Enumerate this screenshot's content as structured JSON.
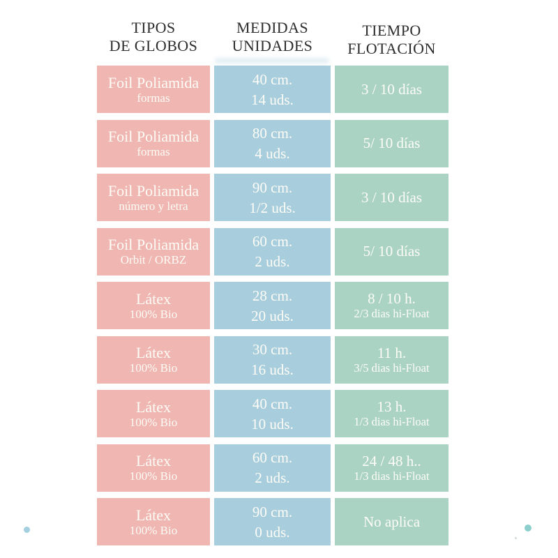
{
  "columns": [
    {
      "line1": "TIPOS",
      "line2": "DE GLOBOS"
    },
    {
      "line1": "MEDIDAS",
      "line2": "UNIDADES"
    },
    {
      "line1": "TIEMPO",
      "line2": "FLOTACIÓN"
    }
  ],
  "rows": [
    {
      "tipo": "Foil Poliamida",
      "tipo_sub": "formas",
      "medida": "40 cm.",
      "unidades": "14 uds.",
      "tiempo": "3 / 10 días",
      "tiempo_sub": ""
    },
    {
      "tipo": "Foil Poliamida",
      "tipo_sub": "formas",
      "medida": "80 cm.",
      "unidades": "4 uds.",
      "tiempo": "5/ 10 días",
      "tiempo_sub": ""
    },
    {
      "tipo": "Foil Poliamida",
      "tipo_sub": "número y letra",
      "medida": "90 cm.",
      "unidades": "1/2 uds.",
      "tiempo": "3 / 10 días",
      "tiempo_sub": ""
    },
    {
      "tipo": "Foil Poliamida",
      "tipo_sub": "Orbit / ORBZ",
      "medida": "60 cm.",
      "unidades": "2 uds.",
      "tiempo": "5/ 10 días",
      "tiempo_sub": ""
    },
    {
      "tipo": "Látex",
      "tipo_sub": "100% Bio",
      "medida": "28 cm.",
      "unidades": "20 uds.",
      "tiempo": "8 / 10 h.",
      "tiempo_sub": "2/3 dias hi-Float"
    },
    {
      "tipo": "Látex",
      "tipo_sub": "100% Bio",
      "medida": "30 cm.",
      "unidades": "16 uds.",
      "tiempo": "11 h.",
      "tiempo_sub": "3/5 dias hi-Float"
    },
    {
      "tipo": "Látex",
      "tipo_sub": "100% Bio",
      "medida": "40 cm.",
      "unidades": "10 uds.",
      "tiempo": "13 h.",
      "tiempo_sub": "1/3 dias hi-Float"
    },
    {
      "tipo": "Látex",
      "tipo_sub": "100% Bio",
      "medida": "60 cm.",
      "unidades": "2 uds.",
      "tiempo": "24 / 48 h..",
      "tiempo_sub": "1/3 dias hi-Float"
    },
    {
      "tipo": "Látex",
      "tipo_sub": "100% Bio",
      "medida": "90 cm.",
      "unidades": "0 uds.",
      "tiempo": "No aplica",
      "tiempo_sub": ""
    }
  ],
  "colors": {
    "tipo_cell": "#f0b6b2",
    "medida_cell": "#a8cddc",
    "tiempo_cell": "#aad3c3",
    "cell_text": "#fdfcf6",
    "header_text": "#2d2d2d",
    "left_dot": "#a3cfe0",
    "right_dot": "#8ccfcd",
    "speck": "#b9c4c4"
  },
  "chart_data": {
    "type": "table",
    "title": "",
    "column_headers": [
      "TIPOS DE GLOBOS",
      "MEDIDAS UNIDADES",
      "TIEMPO FLOTACIÓN"
    ],
    "rows": [
      [
        "Foil Poliamida formas",
        "40 cm. / 14 uds.",
        "3 / 10 días"
      ],
      [
        "Foil Poliamida formas",
        "80 cm. / 4 uds.",
        "5/ 10 días"
      ],
      [
        "Foil Poliamida número y letra",
        "90 cm. / 1/2 uds.",
        "3 / 10 días"
      ],
      [
        "Foil Poliamida Orbit / ORBZ",
        "60 cm. / 2 uds.",
        "5/ 10 días"
      ],
      [
        "Látex 100% Bio",
        "28 cm. / 20 uds.",
        "8 / 10 h. 2/3 dias hi-Float"
      ],
      [
        "Látex 100% Bio",
        "30 cm. / 16 uds.",
        "11 h. 3/5 dias hi-Float"
      ],
      [
        "Látex 100% Bio",
        "40 cm. / 10 uds.",
        "13 h. 1/3 dias hi-Float"
      ],
      [
        "Látex 100% Bio",
        "60 cm. / 2 uds.",
        "24 / 48 h.. 1/3 dias hi-Float"
      ],
      [
        "Látex 100% Bio",
        "90 cm. / 0 uds.",
        "No aplica"
      ]
    ],
    "layout_hints": {
      "column_colors": [
        "#f0b6b2",
        "#a8cddc",
        "#aad3c3"
      ],
      "grid": false,
      "cell_text_color": "#fdfcf6"
    }
  }
}
